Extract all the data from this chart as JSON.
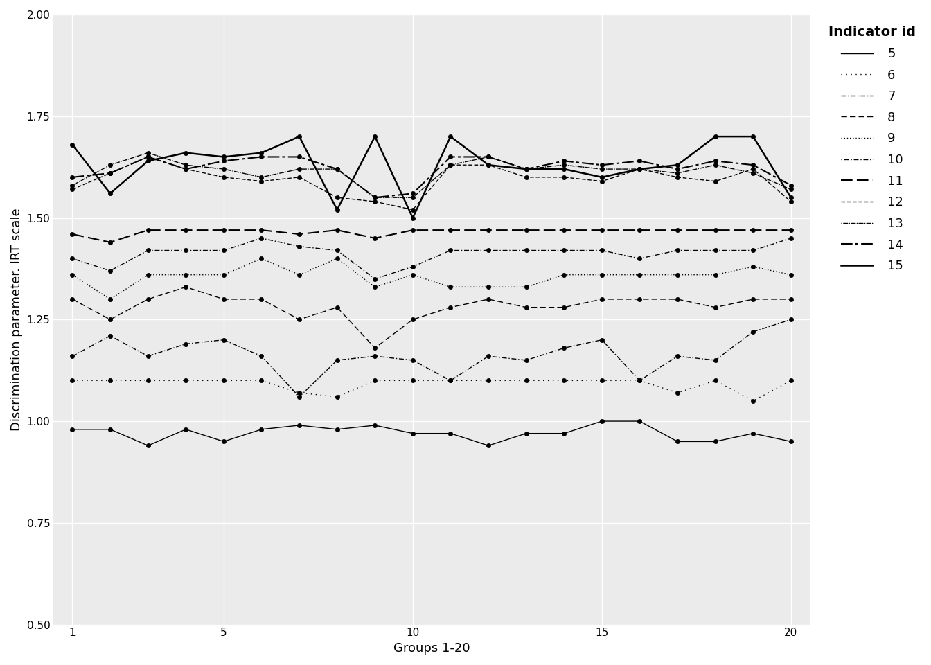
{
  "x": [
    1,
    2,
    3,
    4,
    5,
    6,
    7,
    8,
    9,
    10,
    11,
    12,
    13,
    14,
    15,
    16,
    17,
    18,
    19,
    20
  ],
  "series": {
    "5": [
      0.98,
      0.98,
      0.94,
      0.98,
      0.95,
      0.98,
      0.99,
      0.98,
      0.99,
      0.97,
      0.97,
      0.94,
      0.97,
      0.97,
      1.0,
      1.0,
      0.95,
      0.95,
      0.97,
      0.95
    ],
    "6": [
      1.1,
      1.1,
      1.1,
      1.1,
      1.1,
      1.1,
      1.07,
      1.06,
      1.1,
      1.1,
      1.1,
      1.1,
      1.1,
      1.1,
      1.1,
      1.1,
      1.07,
      1.1,
      1.05,
      1.1
    ],
    "7": [
      1.16,
      1.21,
      1.16,
      1.19,
      1.2,
      1.16,
      1.06,
      1.15,
      1.16,
      1.15,
      1.1,
      1.16,
      1.15,
      1.18,
      1.2,
      1.1,
      1.16,
      1.15,
      1.22,
      1.25
    ],
    "8": [
      1.3,
      1.25,
      1.3,
      1.33,
      1.3,
      1.3,
      1.25,
      1.28,
      1.18,
      1.25,
      1.28,
      1.3,
      1.28,
      1.28,
      1.3,
      1.3,
      1.3,
      1.28,
      1.3,
      1.3
    ],
    "9": [
      1.36,
      1.3,
      1.36,
      1.36,
      1.36,
      1.4,
      1.36,
      1.4,
      1.33,
      1.36,
      1.33,
      1.33,
      1.33,
      1.36,
      1.36,
      1.36,
      1.36,
      1.36,
      1.38,
      1.36
    ],
    "10": [
      1.4,
      1.37,
      1.42,
      1.42,
      1.42,
      1.45,
      1.43,
      1.42,
      1.35,
      1.38,
      1.42,
      1.42,
      1.42,
      1.42,
      1.42,
      1.4,
      1.42,
      1.42,
      1.42,
      1.45
    ],
    "11": [
      1.46,
      1.44,
      1.47,
      1.47,
      1.47,
      1.47,
      1.46,
      1.47,
      1.45,
      1.47,
      1.47,
      1.47,
      1.47,
      1.47,
      1.47,
      1.47,
      1.47,
      1.47,
      1.47,
      1.47
    ],
    "12": [
      1.57,
      1.61,
      1.65,
      1.62,
      1.6,
      1.59,
      1.6,
      1.55,
      1.54,
      1.52,
      1.63,
      1.63,
      1.6,
      1.6,
      1.59,
      1.62,
      1.6,
      1.59,
      1.62,
      1.54
    ],
    "13": [
      1.58,
      1.63,
      1.66,
      1.63,
      1.62,
      1.6,
      1.62,
      1.62,
      1.55,
      1.55,
      1.63,
      1.65,
      1.62,
      1.63,
      1.62,
      1.62,
      1.61,
      1.63,
      1.61,
      1.57
    ],
    "14": [
      1.6,
      1.61,
      1.65,
      1.62,
      1.64,
      1.65,
      1.65,
      1.62,
      1.55,
      1.56,
      1.65,
      1.65,
      1.62,
      1.64,
      1.63,
      1.64,
      1.62,
      1.64,
      1.63,
      1.58
    ],
    "15": [
      1.68,
      1.56,
      1.64,
      1.66,
      1.65,
      1.66,
      1.7,
      1.52,
      1.7,
      1.5,
      1.7,
      1.63,
      1.62,
      1.62,
      1.6,
      1.62,
      1.63,
      1.7,
      1.7,
      1.55
    ]
  },
  "color": "black",
  "marker": "o",
  "markersize": 4.5,
  "xlabel": "Groups 1-20",
  "ylabel": "Discrimination parameter. IRT scale",
  "legend_title": "Indicator id",
  "ylim": [
    0.5,
    2.0
  ],
  "yticks": [
    0.5,
    0.75,
    1.0,
    1.25,
    1.5,
    1.75,
    2.0
  ],
  "xticks": [
    1,
    5,
    10,
    15,
    20
  ],
  "panel_bg": "#EBEBEB",
  "grid_color": "#FFFFFF",
  "outer_bg": "#FFFFFF",
  "axis_fontsize": 13,
  "tick_fontsize": 11,
  "legend_fontsize": 13,
  "legend_title_fontsize": 14
}
